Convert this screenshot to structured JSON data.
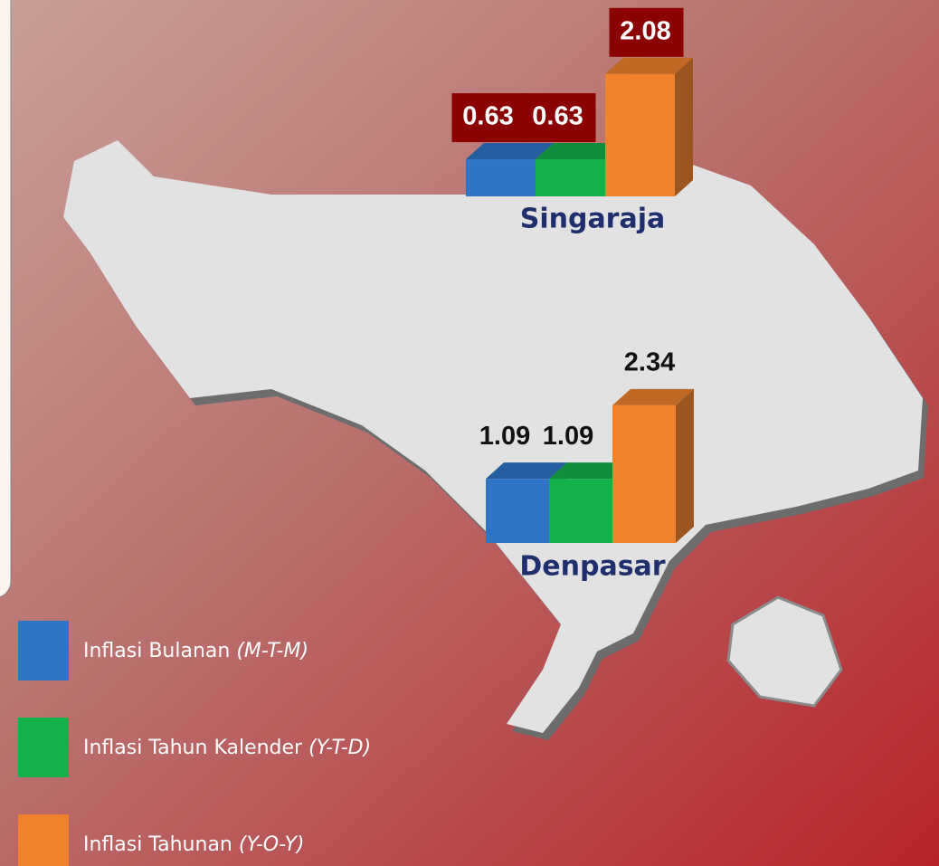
{
  "legend": {
    "items": [
      {
        "name": "Inflasi  Bulanan",
        "note": "(M-T-M)",
        "color": "#2e75c6"
      },
      {
        "name": "Inflasi  Tahun Kalender",
        "note": "(Y-T-D)",
        "color": "#14b04c"
      },
      {
        "name": "Inflasi  Tahunan",
        "note": "(Y-O-Y)",
        "color": "#f0822e"
      }
    ]
  },
  "chart_data": [
    {
      "type": "bar",
      "title": "Singaraja",
      "values": [
        0.63,
        0.63,
        2.08
      ]
    },
    {
      "type": "bar",
      "title": "Denpasar",
      "values": [
        1.09,
        1.09,
        2.34
      ]
    }
  ]
}
